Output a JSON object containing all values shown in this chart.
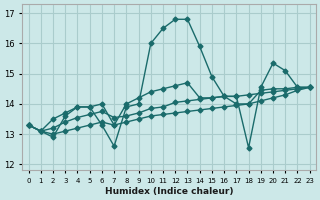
{
  "xlabel": "Humidex (Indice chaleur)",
  "background_color": "#cce8e8",
  "grid_color": "#aacccc",
  "line_color": "#1a6b6b",
  "xlim": [
    -0.5,
    23.5
  ],
  "ylim": [
    11.8,
    17.3
  ],
  "yticks": [
    12,
    13,
    14,
    15,
    16,
    17
  ],
  "xtick_labels": [
    "0",
    "1",
    "2",
    "3",
    "4",
    "5",
    "6",
    "7",
    "8",
    "9",
    "10",
    "11",
    "12",
    "13",
    "14",
    "15",
    "16",
    "17",
    "18",
    "19",
    "20",
    "21",
    "22",
    "23"
  ],
  "series": [
    [
      13.3,
      13.1,
      12.9,
      13.6,
      13.9,
      13.9,
      13.3,
      12.6,
      13.9,
      14.0,
      16.0,
      16.5,
      16.8,
      16.8,
      15.9,
      14.9,
      14.25,
      14.25,
      12.55,
      14.55,
      15.35,
      15.1,
      14.55,
      14.55
    ],
    [
      13.3,
      13.1,
      13.5,
      13.7,
      13.9,
      13.9,
      14.0,
      13.3,
      14.0,
      14.2,
      14.4,
      14.5,
      14.6,
      14.7,
      14.2,
      14.2,
      14.25,
      14.0,
      14.0,
      14.45,
      14.5,
      14.5,
      14.55,
      14.55
    ],
    [
      13.3,
      13.1,
      13.2,
      13.4,
      13.55,
      13.65,
      13.75,
      13.55,
      13.6,
      13.7,
      13.85,
      13.9,
      14.05,
      14.1,
      14.15,
      14.2,
      14.25,
      14.25,
      14.3,
      14.35,
      14.4,
      14.45,
      14.5,
      14.55
    ],
    [
      13.3,
      13.1,
      13.0,
      13.1,
      13.2,
      13.3,
      13.4,
      13.3,
      13.4,
      13.5,
      13.6,
      13.65,
      13.7,
      13.75,
      13.8,
      13.85,
      13.9,
      13.95,
      14.0,
      14.1,
      14.2,
      14.3,
      14.45,
      14.55
    ]
  ]
}
